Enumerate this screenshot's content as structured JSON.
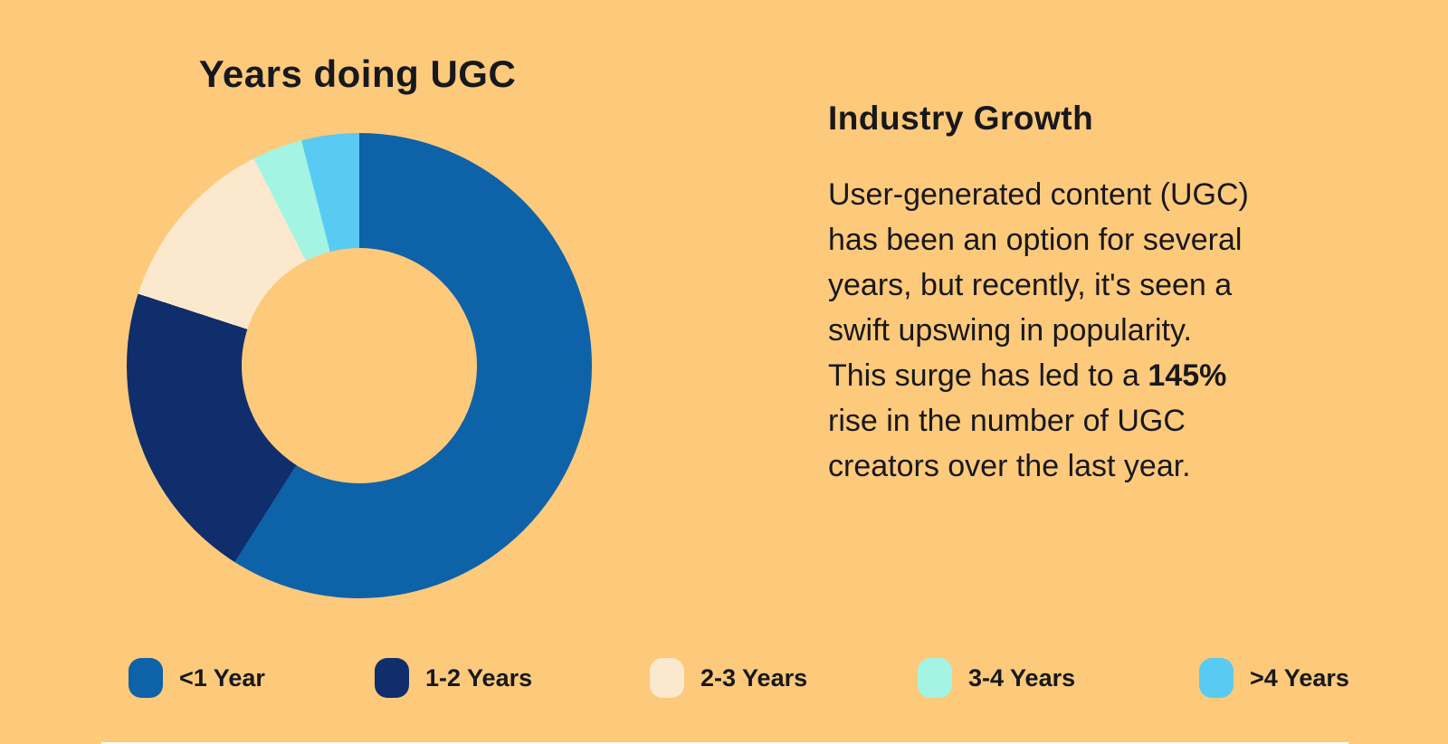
{
  "canvas": {
    "background_color": "#FDC97B",
    "text_color": "#17181C",
    "bottom_edge_color": "#FFFFFF"
  },
  "chart_data": {
    "type": "pie",
    "subtype": "donut",
    "title": "Years doing UGC",
    "categories": [
      "<1 Year",
      "1-2 Years",
      "2-3 Years",
      "3-4 Years",
      ">4 Years"
    ],
    "values": [
      59,
      21,
      12.5,
      3.5,
      4
    ],
    "unit": "%",
    "colors": [
      "#0E62A8",
      "#0F2E6B",
      "#FCE8CD",
      "#A4F4E3",
      "#59CBF3"
    ],
    "start_angle_deg": 0,
    "direction": "clockwise",
    "donut_hole_ratio": 0.5,
    "legend_position": "bottom",
    "grid": false,
    "data_labels": "none"
  },
  "growth": {
    "heading": "Industry Growth",
    "lines": [
      "User-generated content (UGC)",
      "has been an option for several",
      "years, but recently, it's seen a",
      "swift upswing in popularity.",
      "This surge has led to a **145%**",
      "rise in the number of UGC",
      "creators over the last year."
    ],
    "highlight": "145%"
  }
}
